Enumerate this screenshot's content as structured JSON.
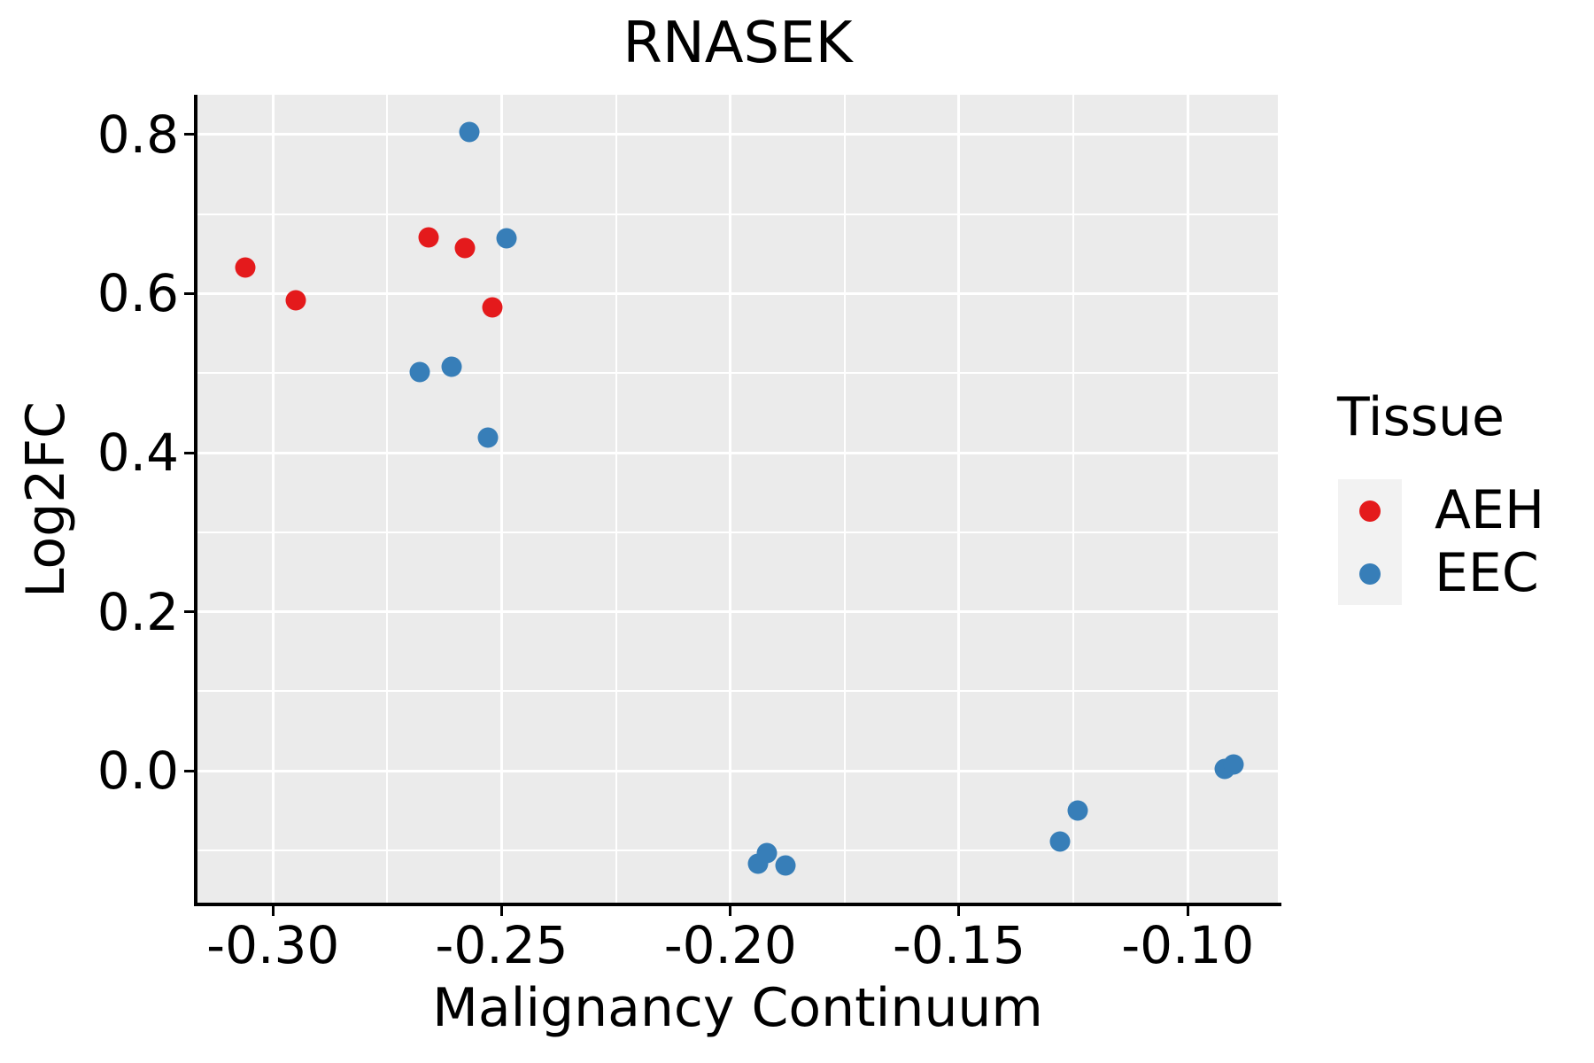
{
  "title": "RNASEK",
  "axes": {
    "x": {
      "label": "Malignancy Continuum",
      "range": [
        -0.3165,
        -0.0803
      ],
      "ticks": [
        {
          "value": -0.3,
          "label": "-0.30"
        },
        {
          "value": -0.25,
          "label": "-0.25"
        },
        {
          "value": -0.2,
          "label": "-0.20"
        },
        {
          "value": -0.15,
          "label": "-0.15"
        },
        {
          "value": -0.1,
          "label": "-0.10"
        }
      ],
      "minor_gridlines": [
        -0.275,
        -0.225,
        -0.175,
        -0.125
      ]
    },
    "y": {
      "label": "Log2FC",
      "range": [
        -0.1656,
        0.85
      ],
      "ticks": [
        {
          "value": 0.0,
          "label": "0.0"
        },
        {
          "value": 0.2,
          "label": "0.2"
        },
        {
          "value": 0.4,
          "label": "0.4"
        },
        {
          "value": 0.6,
          "label": "0.6"
        },
        {
          "value": 0.8,
          "label": "0.8"
        }
      ],
      "minor_gridlines": [
        -0.1,
        0.1,
        0.3,
        0.5,
        0.7
      ]
    }
  },
  "legend": {
    "title": "Tissue",
    "entries": [
      {
        "label": "AEH",
        "color": "#E41A1C"
      },
      {
        "label": "EEC",
        "color": "#377EB8"
      }
    ]
  },
  "colors": {
    "panel_background": "#EBEBEB",
    "gridline": "#FFFFFF",
    "axis_line": "#000000",
    "legend_key_background": "#F2F2F2",
    "aeh": "#E41A1C",
    "eec": "#377EB8"
  },
  "chart_data": {
    "type": "scatter",
    "title": "RNASEK",
    "xlabel": "Malignancy Continuum",
    "ylabel": "Log2FC",
    "xlim": [
      -0.3165,
      -0.0803
    ],
    "ylim": [
      -0.1656,
      0.85
    ],
    "grid": "major-and-minor, white on gray panel",
    "legend_position": "right",
    "series": [
      {
        "name": "AEH",
        "color": "#E41A1C",
        "points": [
          {
            "x": -0.306,
            "y": 0.633
          },
          {
            "x": -0.295,
            "y": 0.592
          },
          {
            "x": -0.266,
            "y": 0.671
          },
          {
            "x": -0.258,
            "y": 0.657
          },
          {
            "x": -0.252,
            "y": 0.583
          }
        ]
      },
      {
        "name": "EEC",
        "color": "#377EB8",
        "points": [
          {
            "x": -0.257,
            "y": 0.803
          },
          {
            "x": -0.249,
            "y": 0.67
          },
          {
            "x": -0.268,
            "y": 0.502
          },
          {
            "x": -0.261,
            "y": 0.508
          },
          {
            "x": -0.253,
            "y": 0.419
          },
          {
            "x": -0.194,
            "y": -0.117
          },
          {
            "x": -0.192,
            "y": -0.103
          },
          {
            "x": -0.188,
            "y": -0.119
          },
          {
            "x": -0.128,
            "y": -0.089
          },
          {
            "x": -0.124,
            "y": -0.05
          },
          {
            "x": -0.092,
            "y": 0.003
          },
          {
            "x": -0.09,
            "y": 0.008
          }
        ]
      }
    ]
  }
}
